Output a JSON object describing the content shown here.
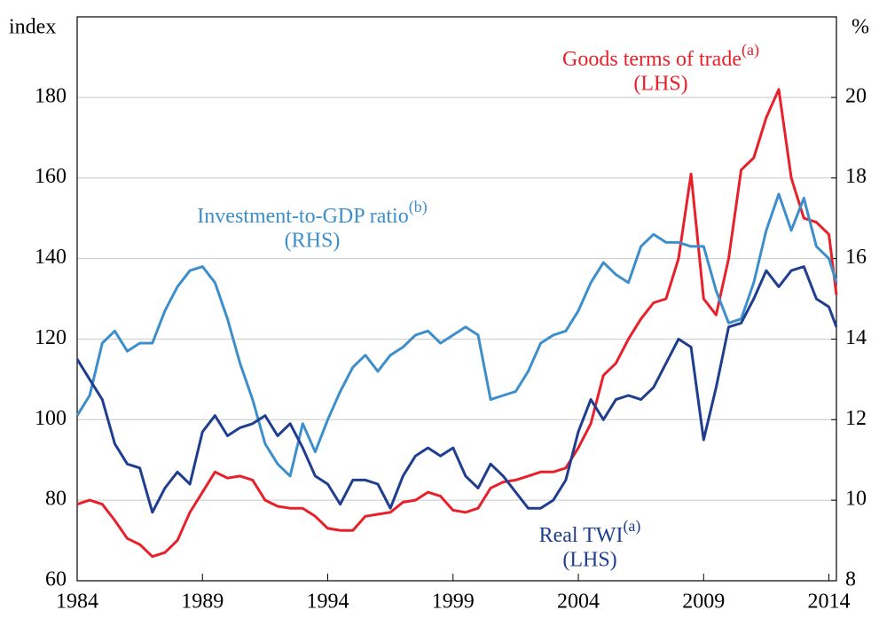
{
  "chart_data": {
    "type": "line",
    "ylabel": "index",
    "y2label": "%",
    "x": [
      1984,
      1984.5,
      1985,
      1985.5,
      1986,
      1986.5,
      1987,
      1987.5,
      1988,
      1988.5,
      1989,
      1989.5,
      1990,
      1990.5,
      1991,
      1991.5,
      1992,
      1992.5,
      1993,
      1993.5,
      1994,
      1994.5,
      1995,
      1995.5,
      1996,
      1996.5,
      1997,
      1997.5,
      1998,
      1998.5,
      1999,
      1999.5,
      2000,
      2000.5,
      2001,
      2001.5,
      2002,
      2002.5,
      2003,
      2003.5,
      2004,
      2004.5,
      2005,
      2005.5,
      2006,
      2006.5,
      2007,
      2007.5,
      2008,
      2008.5,
      2009,
      2009.5,
      2010,
      2010.5,
      2011,
      2011.5,
      2012,
      2012.5,
      2013,
      2013.5,
      2014,
      2014.3
    ],
    "xlim": [
      1984,
      2014.3
    ],
    "xticks": [
      1984,
      1989,
      1994,
      1999,
      2004,
      2009,
      2014
    ],
    "ylim": [
      60,
      200
    ],
    "yticks": [
      60,
      80,
      100,
      120,
      140,
      160,
      180
    ],
    "y2lim": [
      8,
      22
    ],
    "y2ticks": [
      8,
      10,
      12,
      14,
      16,
      18,
      20
    ],
    "grid": true,
    "series": [
      {
        "name": "Goods terms of trade",
        "superscript": "(a)",
        "side": "(LHS)",
        "color": "#e8202a",
        "values": [
          79,
          80,
          79,
          75,
          70.5,
          69,
          66,
          67,
          70,
          77,
          82,
          87,
          85.5,
          86,
          85,
          80,
          78.5,
          78,
          78,
          76,
          73,
          72.5,
          72.5,
          76,
          76.5,
          77,
          79.5,
          80,
          82,
          81,
          77.5,
          77,
          78,
          83,
          84.5,
          85,
          86,
          87,
          87,
          88,
          93,
          99,
          111,
          114,
          120,
          125,
          129,
          130,
          140,
          161,
          130,
          126,
          140,
          162,
          165,
          175,
          182,
          160,
          150,
          149,
          146,
          131
        ]
      },
      {
        "name": "Investment-to-GDP ratio",
        "superscript": "(b)",
        "side": "(RHS)",
        "color": "#3d8fcc",
        "axis": "y2",
        "values": [
          12.1,
          12.6,
          13.9,
          14.2,
          13.7,
          13.9,
          13.9,
          14.7,
          15.3,
          15.7,
          15.8,
          15.4,
          14.5,
          13.4,
          12.5,
          11.4,
          10.9,
          10.6,
          11.9,
          11.2,
          12.0,
          12.7,
          13.3,
          13.6,
          13.2,
          13.6,
          13.8,
          14.1,
          14.2,
          13.9,
          14.1,
          14.3,
          14.1,
          12.5,
          12.6,
          12.7,
          13.2,
          13.9,
          14.1,
          14.2,
          14.7,
          15.4,
          15.9,
          15.6,
          15.4,
          16.3,
          16.6,
          16.4,
          16.4,
          16.3,
          16.3,
          15.2,
          14.4,
          14.5,
          15.4,
          16.7,
          17.6,
          16.7,
          17.5,
          16.3,
          16.0,
          15.4
        ]
      },
      {
        "name": "Real TWI",
        "superscript": "(a)",
        "side": "(LHS)",
        "color": "#1f3e8f",
        "values": [
          115,
          110,
          105,
          94,
          89,
          88,
          77,
          83,
          87,
          84,
          97,
          101,
          96,
          98,
          99,
          101,
          96,
          99,
          93,
          86,
          84,
          79,
          85,
          85,
          84,
          78,
          86,
          91,
          93,
          91,
          93,
          86,
          83,
          89,
          86,
          82,
          78,
          78,
          80,
          85,
          97,
          105,
          100,
          105,
          106,
          105,
          108,
          114,
          120,
          118,
          95,
          108,
          123,
          124,
          130,
          137,
          133,
          137,
          138,
          130,
          128,
          123
        ]
      }
    ]
  }
}
